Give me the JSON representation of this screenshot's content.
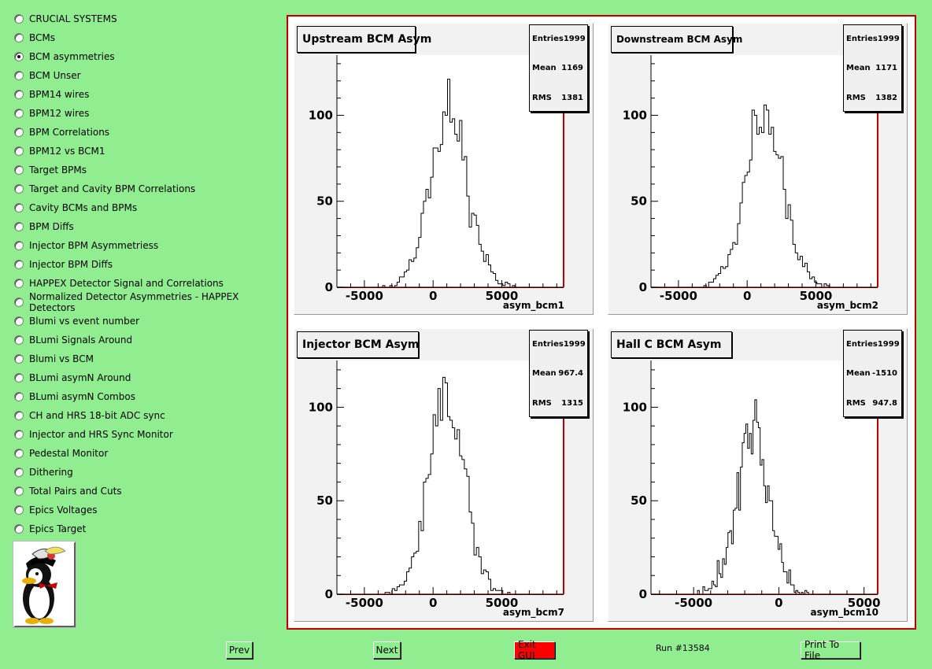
{
  "sidebar": {
    "items": [
      {
        "label": "CRUCIAL SYSTEMS",
        "selected": false
      },
      {
        "label": "BCMs",
        "selected": false
      },
      {
        "label": "BCM asymmetries",
        "selected": true
      },
      {
        "label": "BCM Unser",
        "selected": false
      },
      {
        "label": "BPM14 wires",
        "selected": false
      },
      {
        "label": "BPM12 wires",
        "selected": false
      },
      {
        "label": "BPM Correlations",
        "selected": false
      },
      {
        "label": "BPM12 vs BCM1",
        "selected": false
      },
      {
        "label": "Target BPMs",
        "selected": false
      },
      {
        "label": "Target and Cavity BPM Correlations",
        "selected": false
      },
      {
        "label": "Cavity BCMs and BPMs",
        "selected": false
      },
      {
        "label": "BPM Diffs",
        "selected": false
      },
      {
        "label": "Injector BPM Asymmetriess",
        "selected": false
      },
      {
        "label": "Injector BPM Diffs",
        "selected": false
      },
      {
        "label": "HAPPEX Detector Signal and Correlations",
        "selected": false
      },
      {
        "label": "Normalized Detector Asymmetries - HAPPEX Detectors",
        "selected": false
      },
      {
        "label": "Blumi vs event number",
        "selected": false
      },
      {
        "label": "BLumi Signals Around",
        "selected": false
      },
      {
        "label": "Blumi vs BCM",
        "selected": false
      },
      {
        "label": "BLumi asymN Around",
        "selected": false
      },
      {
        "label": "BLumi asymN Combos",
        "selected": false
      },
      {
        "label": "CH and HRS 18-bit ADC sync",
        "selected": false
      },
      {
        "label": "Injector and HRS Sync Monitor",
        "selected": false
      },
      {
        "label": "Pedestal Monitor",
        "selected": false
      },
      {
        "label": "Dithering",
        "selected": false
      },
      {
        "label": "Total Pairs and Cuts",
        "selected": false
      },
      {
        "label": "Epics Voltages",
        "selected": false
      },
      {
        "label": "Epics Target",
        "selected": false
      }
    ]
  },
  "buttons": {
    "prev": "Prev",
    "next": "Next",
    "exit": "Exit GUI",
    "print": "Print To File"
  },
  "run_label": "Run #13584",
  "colors": {
    "background": "#90ee90",
    "canvas_border": "#c00000",
    "exit_button": "#ff0000",
    "pad": "#f2f2f2"
  },
  "chart_data": [
    {
      "type": "bar",
      "title": "Upstream BCM Asym",
      "xlabel": "asym_bcm1",
      "xlim": [
        -7000,
        9500
      ],
      "ylim": [
        0,
        135
      ],
      "xticks": [
        -5000,
        0,
        5000
      ],
      "yticks": [
        0,
        50,
        100
      ],
      "stats": {
        "Entries": "1999",
        "Mean": "1169",
        "RMS": "1381"
      },
      "mean": 1169,
      "sigma": 1381,
      "entries": 1999,
      "bin_width": 175,
      "seed": 11
    },
    {
      "type": "bar",
      "title": "Downstream BCM Asym",
      "xlabel": "asym_bcm2",
      "xlim": [
        -7000,
        9500
      ],
      "ylim": [
        0,
        135
      ],
      "xticks": [
        -5000,
        0,
        5000
      ],
      "yticks": [
        0,
        50,
        100
      ],
      "stats": {
        "Entries": "1999",
        "Mean": "1171",
        "RMS": "1382"
      },
      "mean": 1171,
      "sigma": 1382,
      "entries": 1999,
      "bin_width": 175,
      "seed": 23
    },
    {
      "type": "bar",
      "title": "Injector BCM Asym",
      "xlabel": "asym_bcm7",
      "xlim": [
        -7000,
        9500
      ],
      "ylim": [
        0,
        125
      ],
      "xticks": [
        -5000,
        0,
        5000
      ],
      "yticks": [
        0,
        50,
        100
      ],
      "stats": {
        "Entries": "1999",
        "Mean": "967.4",
        "RMS": "1315"
      },
      "mean": 967.4,
      "sigma": 1315,
      "entries": 1999,
      "bin_width": 175,
      "seed": 37
    },
    {
      "type": "bar",
      "title": "Hall C BCM Asym",
      "xlabel": "asym_bcm10",
      "xlim": [
        -7500,
        5800
      ],
      "ylim": [
        0,
        125
      ],
      "xticks": [
        -5000,
        0,
        5000
      ],
      "yticks": [
        0,
        50,
        100
      ],
      "stats": {
        "Entries": "1999",
        "Mean": "-1510",
        "RMS": "947.8"
      },
      "mean": -1510,
      "sigma": 947.8,
      "entries": 1999,
      "bin_width": 105,
      "seed": 53
    }
  ]
}
